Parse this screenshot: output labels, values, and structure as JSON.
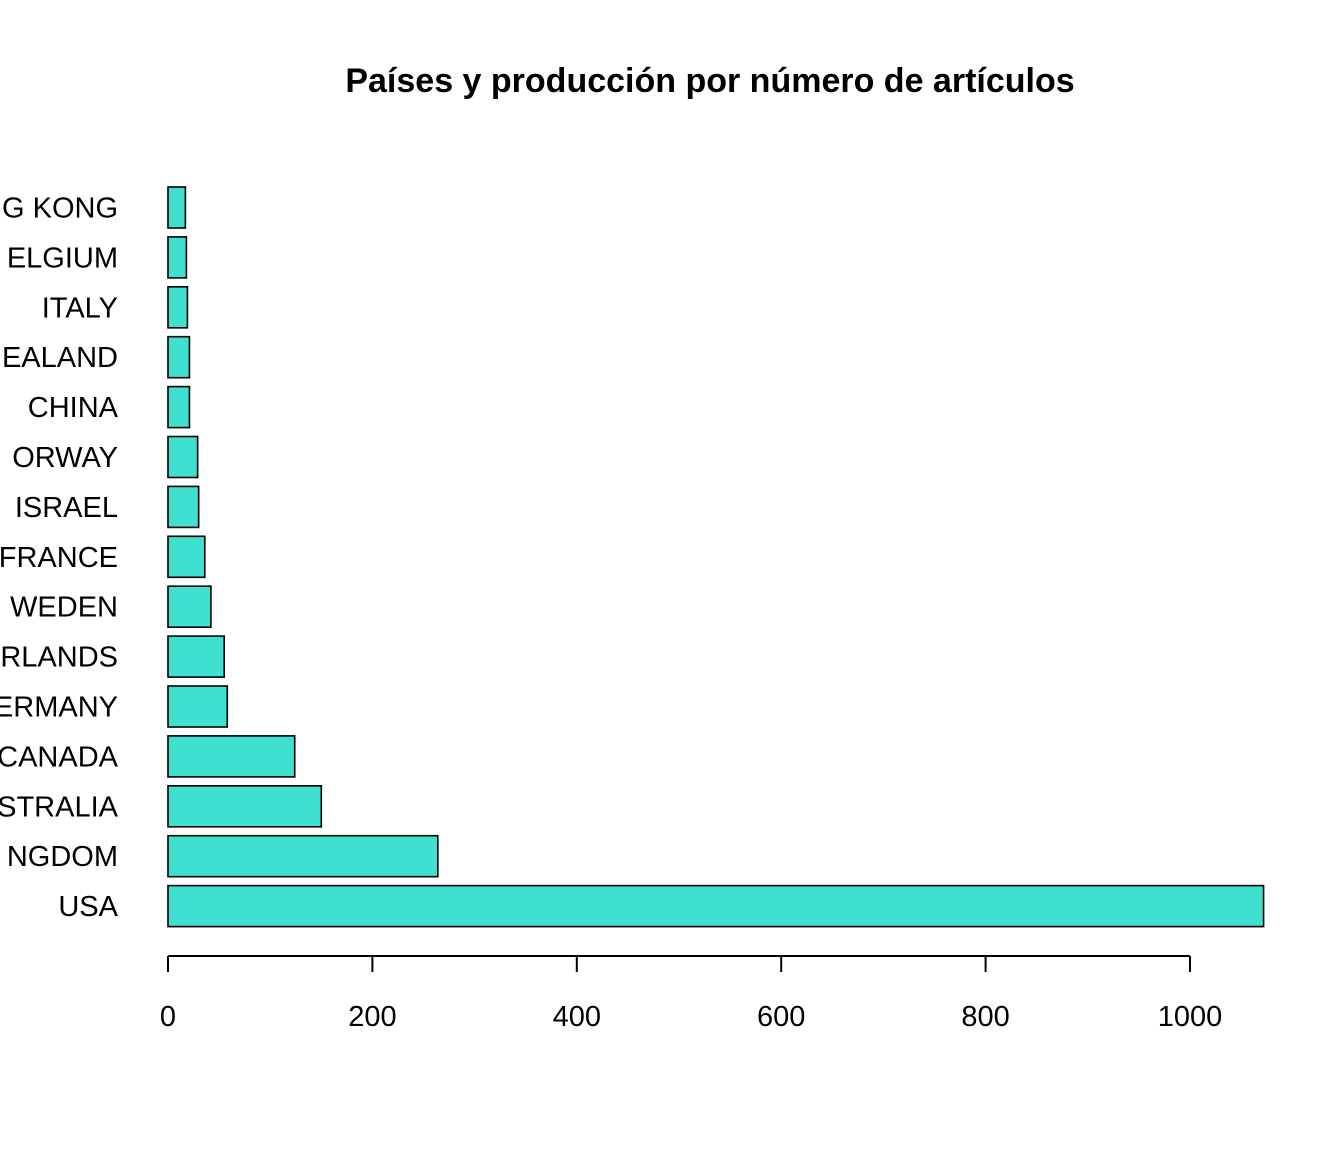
{
  "chart_data": {
    "type": "bar",
    "orientation": "horizontal",
    "title": "Países y producción por número de artículos",
    "xlabel": "",
    "ylabel": "",
    "categories": [
      "G KONG",
      "ELGIUM",
      "ITALY",
      "EALAND",
      "CHINA",
      "ORWAY",
      "ISRAEL",
      "FRANCE",
      "WEDEN",
      "RLANDS",
      "ERMANY",
      "CANADA",
      "STRALIA",
      "NGDOM",
      "USA"
    ],
    "values": [
      17,
      18,
      19,
      21,
      21,
      29,
      30,
      36,
      42,
      55,
      58,
      124,
      150,
      264,
      1072
    ],
    "xlim": [
      0,
      1072
    ],
    "xticks": [
      0,
      200,
      400,
      600,
      800,
      1000
    ],
    "bar_color": "#40E0D0",
    "grid": false,
    "legend": "none"
  }
}
